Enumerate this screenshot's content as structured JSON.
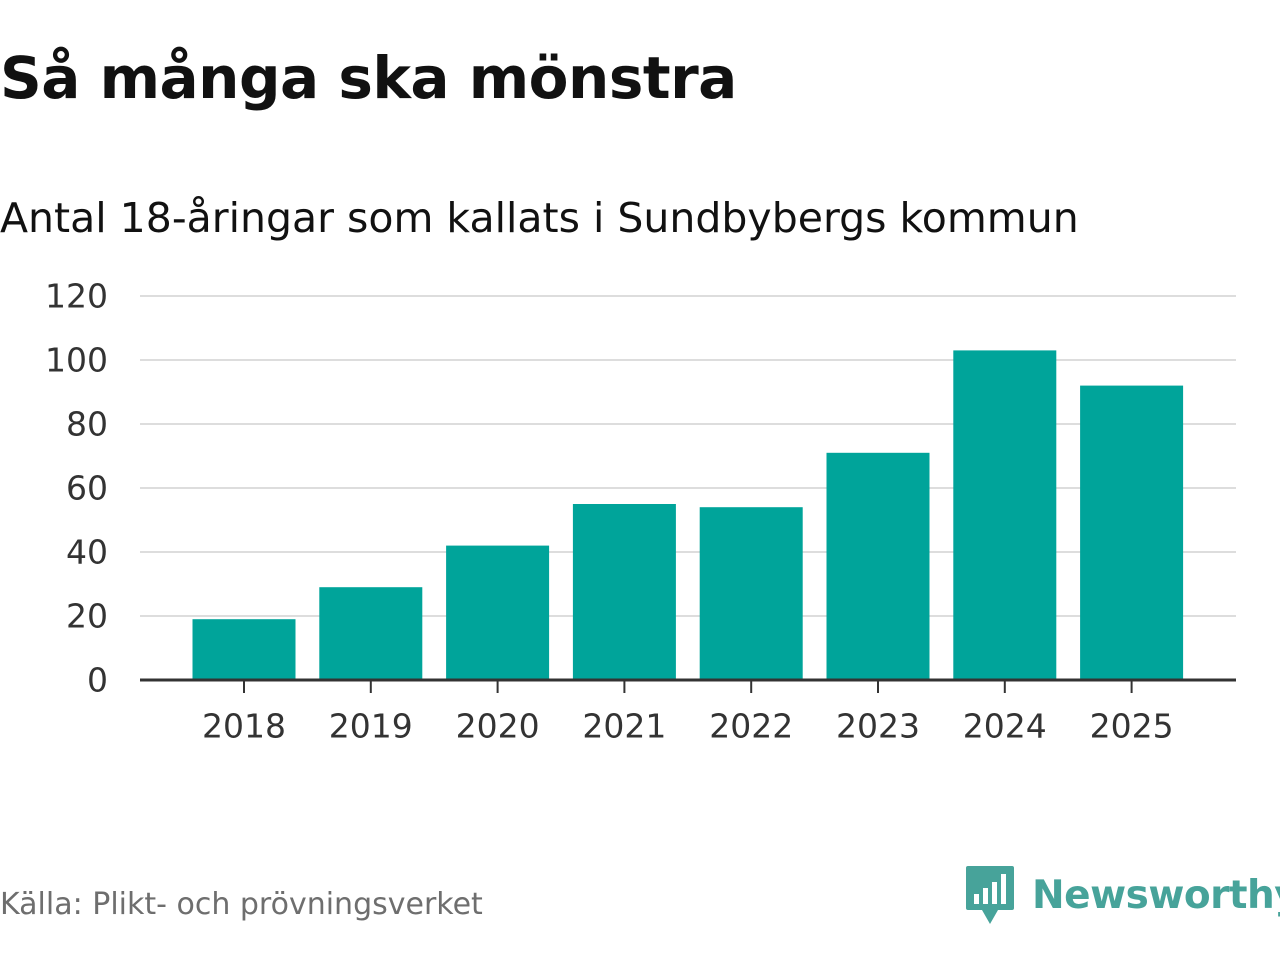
{
  "chart_data": {
    "type": "bar",
    "title": "Så många ska mönstra",
    "subtitle": "Antal 18-åringar som kallats i Sundbybergs kommun",
    "categories": [
      "2018",
      "2019",
      "2020",
      "2021",
      "2022",
      "2023",
      "2024",
      "2025"
    ],
    "values": [
      19,
      29,
      42,
      55,
      54,
      71,
      103,
      92
    ],
    "xlabel": "",
    "ylabel": "",
    "ylim": [
      0,
      120
    ],
    "yticks": [
      "0",
      "20",
      "40",
      "60",
      "80",
      "100",
      "120"
    ],
    "grid": true,
    "colors": {
      "bar": "#00a49a",
      "grid": "#dddddd",
      "axis": "#333333"
    }
  },
  "footer": {
    "source": "Källa: Plikt- och prövningsverket",
    "brand": "Newsworthy",
    "brand_icon": "newsworthy-logo-icon",
    "brand_color": "#47a39a"
  }
}
